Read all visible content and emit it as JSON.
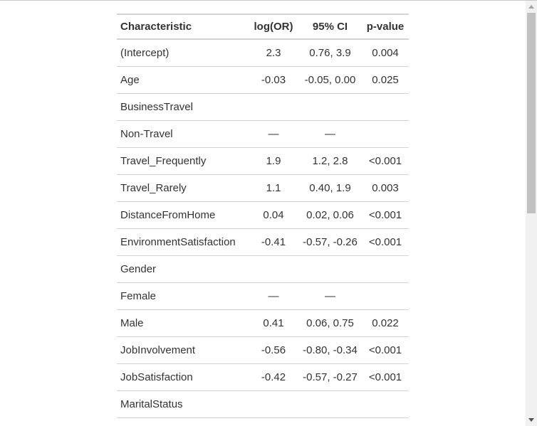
{
  "table": {
    "headers": {
      "characteristic": "Characteristic",
      "log_or": "log(OR)",
      "ci": "95% CI",
      "p_value": "p-value"
    },
    "rows": [
      {
        "label": "(Intercept)",
        "log_or": "2.3",
        "ci": "0.76, 3.9",
        "p": "0.004",
        "indent": false
      },
      {
        "label": "Age",
        "log_or": "-0.03",
        "ci": "-0.05, 0.00",
        "p": "0.025",
        "indent": false
      },
      {
        "label": "BusinessTravel",
        "log_or": "",
        "ci": "",
        "p": "",
        "indent": false
      },
      {
        "label": "Non-Travel",
        "log_or": "—",
        "ci": "—",
        "p": "",
        "indent": true
      },
      {
        "label": "Travel_Frequently",
        "log_or": "1.9",
        "ci": "1.2, 2.8",
        "p": "<0.001",
        "indent": true
      },
      {
        "label": "Travel_Rarely",
        "log_or": "1.1",
        "ci": "0.40, 1.9",
        "p": "0.003",
        "indent": true
      },
      {
        "label": "DistanceFromHome",
        "log_or": "0.04",
        "ci": "0.02, 0.06",
        "p": "<0.001",
        "indent": false
      },
      {
        "label": "EnvironmentSatisfaction",
        "log_or": "-0.41",
        "ci": "-0.57, -0.26",
        "p": "<0.001",
        "indent": false
      },
      {
        "label": "Gender",
        "log_or": "",
        "ci": "",
        "p": "",
        "indent": false
      },
      {
        "label": "Female",
        "log_or": "—",
        "ci": "—",
        "p": "",
        "indent": true
      },
      {
        "label": "Male",
        "log_or": "0.41",
        "ci": "0.06, 0.75",
        "p": "0.022",
        "indent": true
      },
      {
        "label": "JobInvolvement",
        "log_or": "-0.56",
        "ci": "-0.80, -0.34",
        "p": "<0.001",
        "indent": false
      },
      {
        "label": "JobSatisfaction",
        "log_or": "-0.42",
        "ci": "-0.57, -0.27",
        "p": "<0.001",
        "indent": false
      },
      {
        "label": "MaritalStatus",
        "log_or": "",
        "ci": "",
        "p": "",
        "indent": false
      }
    ]
  },
  "scrollbar": {
    "scroll_position": 0
  }
}
